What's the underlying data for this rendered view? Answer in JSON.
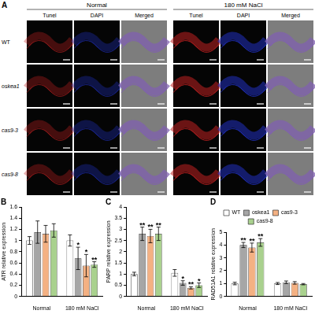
{
  "panel_a": {
    "label": "A",
    "conditions": [
      "Normal",
      "180 mM NaCl"
    ],
    "channels": [
      "Tunel",
      "DAPI",
      "Merged"
    ],
    "rows": [
      "WT",
      "oskea1",
      "cas9-3",
      "cas9-8"
    ]
  },
  "chart_data": [
    {
      "type": "bar",
      "panel": "B",
      "y_label": "ATR relative expression",
      "categories": [
        "Normal",
        "180 mM NaCl"
      ],
      "series": [
        {
          "name": "WT",
          "color": "#ffffff",
          "values": [
            1.0,
            1.0
          ],
          "error": [
            0.07,
            0.1
          ],
          "significance": [
            null,
            null
          ]
        },
        {
          "name": "oskea1",
          "color": "#a6a6a6",
          "values": [
            1.15,
            0.68
          ],
          "error": [
            0.2,
            0.2
          ],
          "significance": [
            null,
            "*"
          ]
        },
        {
          "name": "cas9-3",
          "color": "#f4b183",
          "values": [
            1.12,
            0.55
          ],
          "error": [
            0.15,
            0.2
          ],
          "significance": [
            null,
            "*"
          ]
        },
        {
          "name": "cas9-8",
          "color": "#a9d18e",
          "values": [
            1.18,
            0.57
          ],
          "error": [
            0.12,
            0.05
          ],
          "significance": [
            null,
            "**"
          ]
        }
      ],
      "ylim": [
        0,
        1.6
      ],
      "yticks": [
        0,
        0.2,
        0.4,
        0.6,
        0.8,
        1,
        1.2,
        1.4,
        1.6
      ],
      "grid": false
    },
    {
      "type": "bar",
      "panel": "C",
      "y_label": "PARP relative expression",
      "categories": [
        "Normal",
        "180 mM NaCl"
      ],
      "series": [
        {
          "name": "WT",
          "color": "#ffffff",
          "values": [
            1.0,
            1.05
          ],
          "error": [
            0.08,
            0.15
          ],
          "significance": [
            null,
            null
          ]
        },
        {
          "name": "oskea1",
          "color": "#a6a6a6",
          "values": [
            2.8,
            0.6
          ],
          "error": [
            0.3,
            0.1
          ],
          "significance": [
            "**",
            "*"
          ]
        },
        {
          "name": "cas9-3",
          "color": "#f4b183",
          "values": [
            2.7,
            0.38
          ],
          "error": [
            0.3,
            0.05
          ],
          "significance": [
            "**",
            "**"
          ]
        },
        {
          "name": "cas9-8",
          "color": "#a9d18e",
          "values": [
            2.8,
            0.5
          ],
          "error": [
            0.3,
            0.1
          ],
          "significance": [
            "**",
            "*"
          ]
        }
      ],
      "ylim": [
        0,
        4
      ],
      "yticks": [
        0,
        0.5,
        1,
        1.5,
        2,
        2.5,
        3,
        3.5,
        4
      ],
      "grid": false
    },
    {
      "type": "bar",
      "panel": "D",
      "y_label": "RAD51A1 relative expression",
      "categories": [
        "Normal",
        "180 mM NaCl"
      ],
      "series": [
        {
          "name": "WT",
          "color": "#ffffff",
          "values": [
            1.0,
            1.0
          ],
          "error": [
            0.1,
            0.08
          ],
          "significance": [
            null,
            null
          ]
        },
        {
          "name": "oskea1",
          "color": "#a6a6a6",
          "values": [
            4.0,
            1.1
          ],
          "error": [
            0.2,
            0.1
          ],
          "significance": [
            "**",
            null
          ]
        },
        {
          "name": "cas9-3",
          "color": "#f4b183",
          "values": [
            3.8,
            1.05
          ],
          "error": [
            0.35,
            0.1
          ],
          "significance": [
            "**",
            null
          ]
        },
        {
          "name": "cas9-8",
          "color": "#a9d18e",
          "values": [
            4.2,
            0.95
          ],
          "error": [
            0.3,
            0.05
          ],
          "significance": [
            "**",
            null
          ]
        }
      ],
      "ylim": [
        0,
        5
      ],
      "yticks": [
        0,
        1,
        2,
        3,
        4,
        5
      ],
      "grid": false,
      "legend": "top"
    }
  ]
}
